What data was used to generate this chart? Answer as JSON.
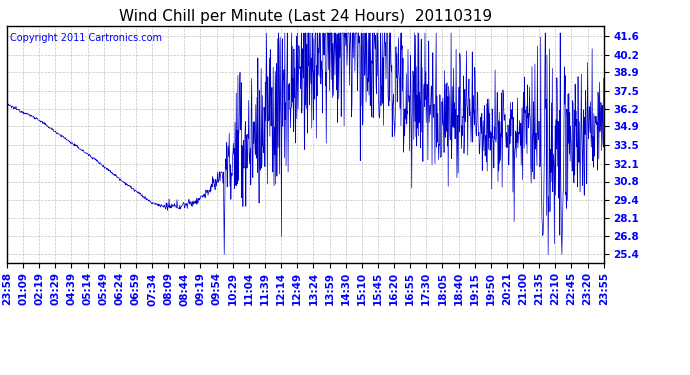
{
  "title": "Wind Chill per Minute (Last 24 Hours)  20110319",
  "copyright": "Copyright 2011 Cartronics.com",
  "line_color": "#0000cc",
  "background_color": "#ffffff",
  "plot_bg_color": "#ffffff",
  "grid_color": "#aaaaaa",
  "yticks": [
    25.4,
    26.8,
    28.1,
    29.4,
    30.8,
    32.1,
    33.5,
    34.9,
    36.2,
    37.5,
    38.9,
    40.2,
    41.6
  ],
  "ylim": [
    24.8,
    42.3
  ],
  "x_labels": [
    "23:58",
    "01:09",
    "02:19",
    "03:29",
    "04:39",
    "05:14",
    "05:49",
    "06:24",
    "06:59",
    "07:34",
    "08:09",
    "08:44",
    "09:19",
    "09:54",
    "10:29",
    "11:04",
    "11:39",
    "12:14",
    "12:49",
    "13:24",
    "13:59",
    "14:30",
    "15:10",
    "15:45",
    "16:20",
    "16:55",
    "17:30",
    "18:05",
    "18:40",
    "19:15",
    "19:50",
    "20:21",
    "21:00",
    "21:35",
    "22:10",
    "22:45",
    "23:20",
    "23:55"
  ],
  "title_fontsize": 11,
  "copyright_fontsize": 7,
  "tick_fontsize": 7.5
}
